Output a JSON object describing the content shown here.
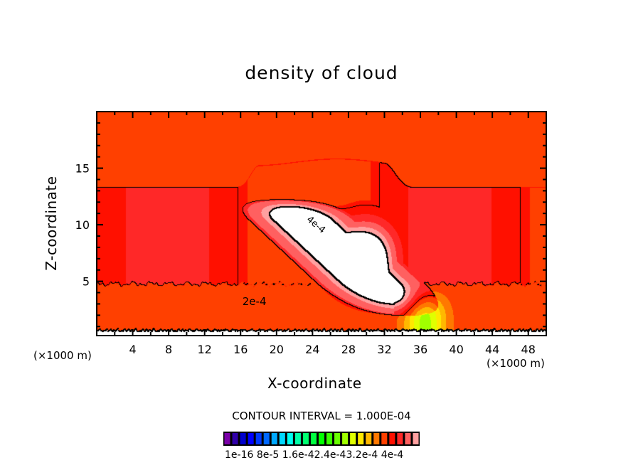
{
  "chart_data": {
    "type": "heatmap",
    "subtype": "filled-contour",
    "title": "density of cloud",
    "xlabel": "X-coordinate",
    "ylabel": "Z-coordinate",
    "x_unit": "(×1000 m)",
    "xlim": [
      0,
      50
    ],
    "ylim": [
      0.2,
      20
    ],
    "x_ticks": [
      4,
      8,
      12,
      16,
      20,
      24,
      28,
      32,
      36,
      40,
      44,
      48
    ],
    "x_tick_labels": [
      "4",
      "8",
      "12",
      "16",
      "20",
      "24",
      "28",
      "32",
      "36",
      "40",
      "44",
      "48"
    ],
    "x_minor_step": 2,
    "y_ticks": [
      5,
      10,
      15
    ],
    "y_tick_labels": [
      "5",
      "10",
      "15"
    ],
    "y_minor_step": 1,
    "contour_interval_text": "CONTOUR INTERVAL = 1.000E-04",
    "contour_interval": 0.0001,
    "contour_lines": [
      {
        "level": 4e-05,
        "label": ""
      },
      {
        "level": 0.0002,
        "label": "2e-4"
      },
      {
        "level": 0.00034,
        "label": ""
      },
      {
        "level": 0.0004,
        "label": "4e-4"
      }
    ],
    "colorbar": {
      "levels": 25,
      "min": 1e-16,
      "max": 0.0004,
      "tick_labels_text": "1e-16 8e-5 1.6e-42.4e-43.2e-4 4e-4",
      "tick_labels": [
        "1e-16",
        "8e-5",
        "1.6e-4",
        "2.4e-4",
        "3.2e-4",
        "4e-4"
      ],
      "colors": [
        "#7a00a8",
        "#3000a8",
        "#0000cc",
        "#0000ff",
        "#0038ff",
        "#0068ff",
        "#00a8ff",
        "#00d8ff",
        "#00fff0",
        "#00ffa8",
        "#00ff70",
        "#00ff40",
        "#00ff00",
        "#38ff00",
        "#68ff00",
        "#a0ff00",
        "#e0ff00",
        "#ffe800",
        "#ffb800",
        "#ff7800",
        "#ff4000",
        "#ff1000",
        "#ff2828",
        "#ff6060",
        "#ffa0a0"
      ],
      "above_max_color": "#ffffff"
    }
  }
}
